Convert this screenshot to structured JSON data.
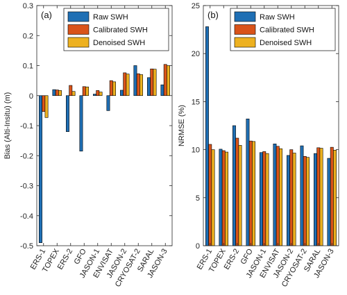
{
  "colors": {
    "raw": "#1f6fb4",
    "calibrated": "#d95319",
    "denoised": "#edb120"
  },
  "chart_data": [
    {
      "type": "bar",
      "panel_label": "(a)",
      "ylabel": "Bias (Alti-Insitu) (m)",
      "ylim": [
        -0.5,
        0.3
      ],
      "yticks": [
        -0.5,
        -0.4,
        -0.3,
        -0.2,
        -0.1,
        0,
        0.1,
        0.2,
        0.3
      ],
      "ytick_labels": [
        "-0.5",
        "-0.4",
        "-0.3",
        "-0.2",
        "-0.1",
        "0",
        "0.1",
        "0.2",
        "0.3"
      ],
      "legend_position": "top-right",
      "categories": [
        "ERS-1",
        "TOPEX",
        "ERS-2",
        "GFO",
        "JASON-1",
        "ENVISAT",
        "JASON-2",
        "CRYOSAT-2",
        "SARAL",
        "JASON-3"
      ],
      "series": [
        {
          "name": "Raw SWH",
          "values": [
            -0.49,
            0.02,
            -0.12,
            -0.185,
            0.005,
            -0.05,
            0.018,
            0.1,
            0.06,
            0.036
          ]
        },
        {
          "name": "Calibrated SWH",
          "values": [
            -0.053,
            0.019,
            0.034,
            0.03,
            0.017,
            0.05,
            0.076,
            0.073,
            0.089,
            0.104
          ]
        },
        {
          "name": "Denoised SWH",
          "values": [
            -0.073,
            0.017,
            0.014,
            0.029,
            0.012,
            0.046,
            0.072,
            0.07,
            0.088,
            0.1
          ]
        }
      ]
    },
    {
      "type": "bar",
      "panel_label": "(b)",
      "ylabel": "NRMSE (%)",
      "ylim": [
        0,
        25
      ],
      "yticks": [
        0,
        5,
        10,
        15,
        20,
        25
      ],
      "ytick_labels": [
        "0",
        "5",
        "10",
        "15",
        "20",
        "25"
      ],
      "legend_position": "top-right",
      "categories": [
        "ERS-1",
        "TOPEX",
        "ERS-2",
        "GFO",
        "JASON-1",
        "ENVISAT",
        "JASON-2",
        "CRYOSAT-2",
        "SARAL",
        "JASON-3"
      ],
      "series": [
        {
          "name": "Raw SWH",
          "values": [
            22.8,
            10.05,
            12.5,
            13.2,
            9.7,
            10.6,
            9.4,
            10.4,
            9.6,
            9.1
          ]
        },
        {
          "name": "Calibrated SWH",
          "values": [
            10.55,
            9.9,
            11.2,
            10.9,
            9.8,
            10.35,
            10.0,
            9.3,
            10.2,
            10.25
          ]
        },
        {
          "name": "Denoised SWH",
          "values": [
            10.0,
            9.75,
            10.45,
            10.85,
            9.6,
            10.1,
            9.65,
            9.2,
            10.15,
            9.95
          ]
        }
      ]
    }
  ]
}
